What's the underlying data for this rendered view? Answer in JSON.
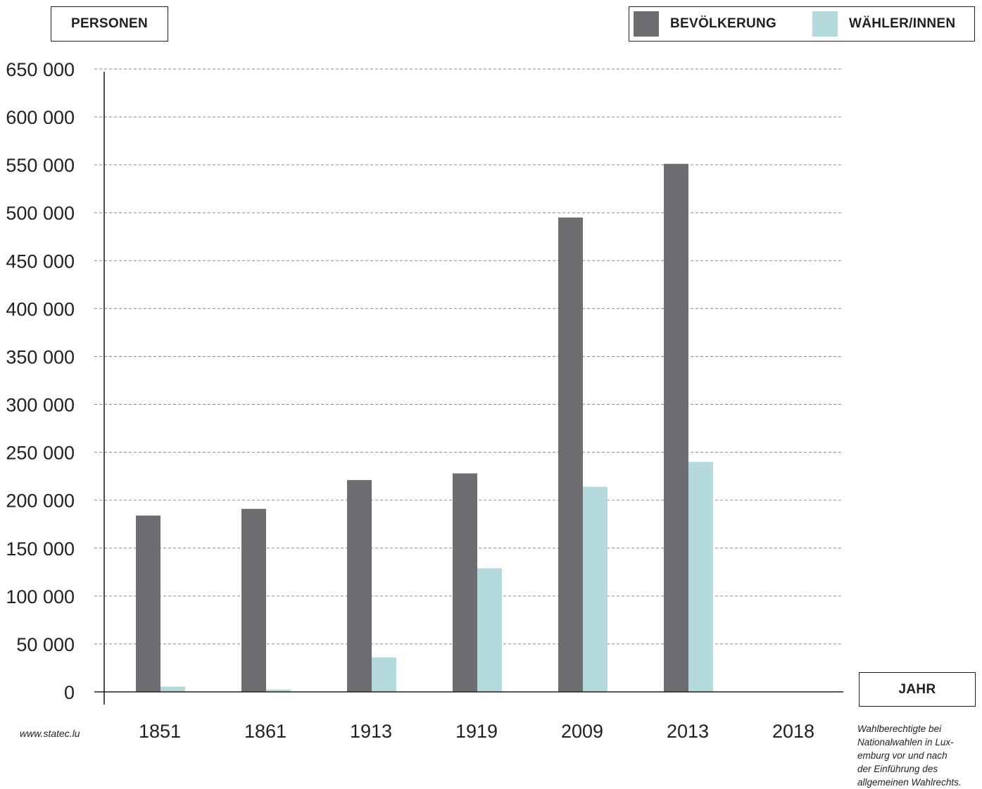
{
  "chart_data": {
    "type": "bar",
    "ylabel": "PERSONEN",
    "xlabel": "JAHR",
    "categories": [
      "1851",
      "1861",
      "1913",
      "1919",
      "2009",
      "2013",
      "2018"
    ],
    "series": [
      {
        "name": "BEVÖLKERUNG",
        "color": "#6d6e71",
        "values": [
          184000,
          191000,
          221000,
          228000,
          495000,
          551000,
          null
        ]
      },
      {
        "name": "WÄHLER/INNEN",
        "color": "#b4dade",
        "values": [
          5500,
          2500,
          36000,
          129000,
          214000,
          240000,
          null
        ]
      }
    ],
    "ylim": [
      0,
      650000
    ],
    "yticks": [
      0,
      50000,
      100000,
      150000,
      200000,
      250000,
      300000,
      350000,
      400000,
      450000,
      500000,
      550000,
      600000,
      650000
    ],
    "ytick_labels": [
      "0",
      "50 000",
      "100 000",
      "150 000",
      "200 000",
      "250 000",
      "300 000",
      "350 000",
      "400 000",
      "450 000",
      "500 000",
      "550 000",
      "600 000",
      "650 000"
    ],
    "grid": true,
    "legend_position": "top-right"
  },
  "source": "www.statec.lu",
  "caption_lines": [
    "Wahlberechtigte bei",
    "Nationalwahlen in Lux-",
    "emburg vor und nach",
    "der Einführung des",
    "allgemeinen Wahlrechts."
  ]
}
